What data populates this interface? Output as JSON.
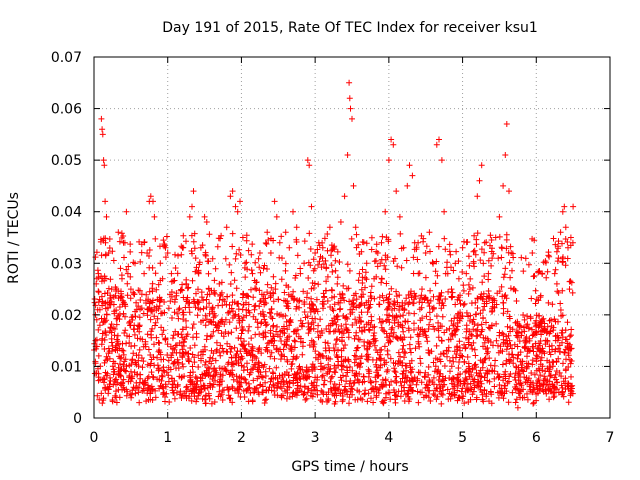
{
  "chart_data": {
    "type": "scatter",
    "title": "Day 191 of 2015, Rate Of TEC Index for receiver ksu1",
    "xlabel": "GPS time / hours",
    "ylabel": "ROTI / TECUs",
    "xlim": [
      0,
      7
    ],
    "ylim": [
      0,
      0.07
    ],
    "xticks": [
      "0",
      "1",
      "2",
      "3",
      "4",
      "5",
      "6",
      "7"
    ],
    "yticks": [
      "0",
      "0.01",
      "0.02",
      "0.03",
      "0.04",
      "0.05",
      "0.06",
      "0.07"
    ],
    "grid": true,
    "marker": "+",
    "color": "#ff0000",
    "series": [
      {
        "name": "ROTI",
        "points": [
          [
            0.02,
            0.015
          ],
          [
            0.03,
            0.026
          ],
          [
            0.05,
            0.021
          ],
          [
            0.06,
            0.028
          ],
          [
            0.08,
            0.018
          ],
          [
            0.08,
            0.021
          ],
          [
            0.1,
            0.058
          ],
          [
            0.11,
            0.056
          ],
          [
            0.12,
            0.055
          ],
          [
            0.13,
            0.05
          ],
          [
            0.14,
            0.049
          ],
          [
            0.15,
            0.042
          ],
          [
            0.17,
            0.039
          ],
          [
            0.2,
            0.032
          ],
          [
            0.24,
            0.025
          ],
          [
            0.27,
            0.022
          ],
          [
            0.3,
            0.004
          ],
          [
            0.31,
            0.003
          ],
          [
            0.33,
            0.036
          ],
          [
            0.36,
            0.029
          ],
          [
            0.38,
            0.027
          ],
          [
            0.4,
            0.034
          ],
          [
            0.42,
            0.022
          ],
          [
            0.44,
            0.04
          ],
          [
            0.46,
            0.028
          ],
          [
            0.5,
            0.025
          ],
          [
            0.52,
            0.019
          ],
          [
            0.55,
            0.024
          ],
          [
            0.58,
            0.021
          ],
          [
            0.62,
            0.018
          ],
          [
            0.65,
            0.024
          ],
          [
            0.68,
            0.028
          ],
          [
            0.72,
            0.032
          ],
          [
            0.75,
            0.042
          ],
          [
            0.77,
            0.043
          ],
          [
            0.8,
            0.042
          ],
          [
            0.82,
            0.039
          ],
          [
            0.86,
            0.023
          ],
          [
            0.9,
            0.03
          ],
          [
            0.93,
            0.027
          ],
          [
            0.97,
            0.033
          ],
          [
            1.0,
            0.032
          ],
          [
            1.05,
            0.028
          ],
          [
            1.1,
            0.023
          ],
          [
            1.15,
            0.021
          ],
          [
            1.2,
            0.033
          ],
          [
            1.25,
            0.026
          ],
          [
            1.3,
            0.039
          ],
          [
            1.33,
            0.041
          ],
          [
            1.35,
            0.044
          ],
          [
            1.38,
            0.031
          ],
          [
            1.42,
            0.028
          ],
          [
            1.45,
            0.033
          ],
          [
            1.5,
            0.039
          ],
          [
            1.53,
            0.038
          ],
          [
            1.57,
            0.024
          ],
          [
            1.6,
            0.021
          ],
          [
            1.65,
            0.018
          ],
          [
            1.7,
            0.026
          ],
          [
            1.75,
            0.023
          ],
          [
            1.8,
            0.037
          ],
          [
            1.85,
            0.043
          ],
          [
            1.88,
            0.044
          ],
          [
            1.92,
            0.041
          ],
          [
            1.95,
            0.04
          ],
          [
            1.98,
            0.042
          ],
          [
            2.02,
            0.035
          ],
          [
            2.05,
            0.03
          ],
          [
            2.1,
            0.022
          ],
          [
            2.15,
            0.028
          ],
          [
            2.2,
            0.025
          ],
          [
            2.25,
            0.032
          ],
          [
            2.3,
            0.029
          ],
          [
            2.35,
            0.036
          ],
          [
            2.4,
            0.032
          ],
          [
            2.45,
            0.042
          ],
          [
            2.48,
            0.039
          ],
          [
            2.52,
            0.034
          ],
          [
            2.55,
            0.031
          ],
          [
            2.6,
            0.036
          ],
          [
            2.65,
            0.033
          ],
          [
            2.7,
            0.04
          ],
          [
            2.75,
            0.037
          ],
          [
            2.8,
            0.028
          ],
          [
            2.85,
            0.03
          ],
          [
            2.9,
            0.05
          ],
          [
            2.92,
            0.049
          ],
          [
            2.95,
            0.041
          ],
          [
            3.0,
            0.032
          ],
          [
            3.05,
            0.034
          ],
          [
            3.1,
            0.031
          ],
          [
            3.15,
            0.029
          ],
          [
            3.2,
            0.037
          ],
          [
            3.25,
            0.033
          ],
          [
            3.3,
            0.026
          ],
          [
            3.35,
            0.038
          ],
          [
            3.4,
            0.043
          ],
          [
            3.44,
            0.051
          ],
          [
            3.46,
            0.065
          ],
          [
            3.47,
            0.062
          ],
          [
            3.48,
            0.06
          ],
          [
            3.5,
            0.058
          ],
          [
            3.52,
            0.045
          ],
          [
            3.55,
            0.037
          ],
          [
            3.6,
            0.028
          ],
          [
            3.65,
            0.024
          ],
          [
            3.7,
            0.03
          ],
          [
            3.75,
            0.022
          ],
          [
            3.8,
            0.027
          ],
          [
            3.85,
            0.032
          ],
          [
            3.9,
            0.034
          ],
          [
            3.95,
            0.04
          ],
          [
            4.0,
            0.05
          ],
          [
            4.03,
            0.054
          ],
          [
            4.06,
            0.053
          ],
          [
            4.1,
            0.044
          ],
          [
            4.15,
            0.039
          ],
          [
            4.2,
            0.033
          ],
          [
            4.25,
            0.045
          ],
          [
            4.28,
            0.049
          ],
          [
            4.32,
            0.047
          ],
          [
            4.35,
            0.034
          ],
          [
            4.4,
            0.028
          ],
          [
            4.45,
            0.025
          ],
          [
            4.5,
            0.032
          ],
          [
            4.55,
            0.036
          ],
          [
            4.6,
            0.03
          ],
          [
            4.65,
            0.053
          ],
          [
            4.68,
            0.054
          ],
          [
            4.72,
            0.05
          ],
          [
            4.75,
            0.04
          ],
          [
            4.8,
            0.028
          ],
          [
            4.85,
            0.025
          ],
          [
            4.9,
            0.022
          ],
          [
            4.95,
            0.027
          ],
          [
            5.0,
            0.033
          ],
          [
            5.05,
            0.028
          ],
          [
            5.1,
            0.025
          ],
          [
            5.15,
            0.03
          ],
          [
            5.2,
            0.043
          ],
          [
            5.23,
            0.046
          ],
          [
            5.26,
            0.049
          ],
          [
            5.3,
            0.034
          ],
          [
            5.35,
            0.028
          ],
          [
            5.4,
            0.031
          ],
          [
            5.45,
            0.035
          ],
          [
            5.5,
            0.039
          ],
          [
            5.55,
            0.045
          ],
          [
            5.58,
            0.051
          ],
          [
            5.6,
            0.057
          ],
          [
            5.63,
            0.044
          ],
          [
            5.66,
            0.032
          ],
          [
            5.7,
            0.025
          ],
          [
            5.75,
            0.018
          ],
          [
            5.8,
            0.016
          ],
          [
            5.85,
            0.015
          ],
          [
            5.9,
            0.013
          ],
          [
            5.95,
            0.016
          ],
          [
            6.0,
            0.018
          ],
          [
            6.05,
            0.014
          ],
          [
            6.1,
            0.017
          ],
          [
            6.15,
            0.015
          ],
          [
            6.2,
            0.019
          ],
          [
            6.25,
            0.028
          ],
          [
            6.28,
            0.026
          ],
          [
            6.3,
            0.031
          ],
          [
            6.33,
            0.036
          ],
          [
            6.36,
            0.04
          ],
          [
            6.38,
            0.041
          ],
          [
            6.4,
            0.037
          ],
          [
            6.43,
            0.033
          ],
          [
            6.45,
            0.025
          ],
          [
            6.47,
            0.035
          ],
          [
            6.5,
            0.041
          ],
          [
            5.72,
            0.003
          ],
          [
            5.75,
            0.002
          ],
          [
            5.78,
            0.004
          ],
          [
            0.35,
            0.004
          ],
          [
            2.9,
            0.005
          ],
          [
            4.45,
            0.005
          ]
        ],
        "band": {
          "x_range": [
            0,
            6.5
          ],
          "baseline_range": [
            0.004,
            0.024
          ],
          "count": 2600
        }
      }
    ]
  }
}
